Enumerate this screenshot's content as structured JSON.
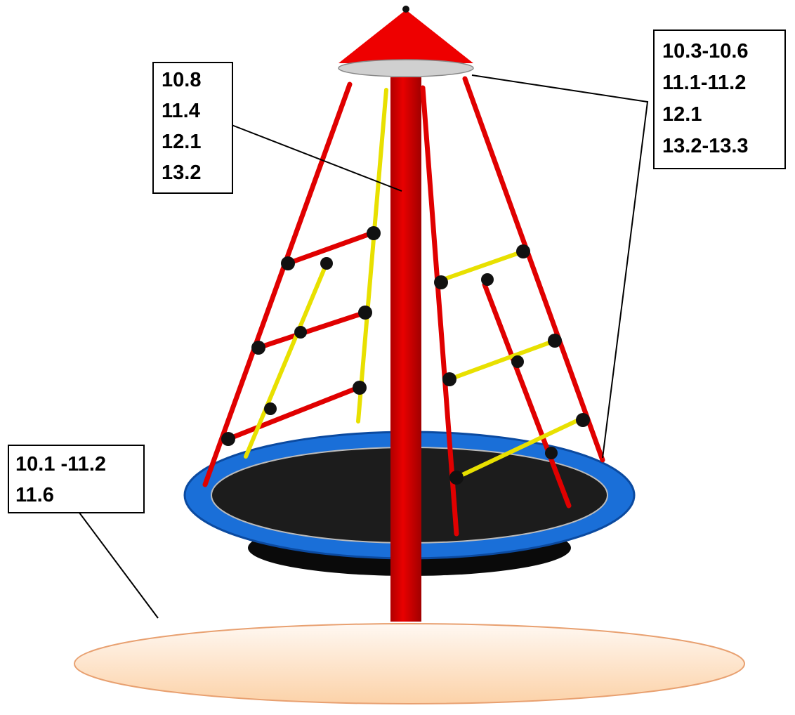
{
  "callouts": [
    {
      "lines": [
        "10.8",
        "11.4",
        "12.1",
        "13.2"
      ]
    },
    {
      "lines": [
        "10.3-10.6",
        "11.1-11.2",
        "12.1",
        "13.2-13.3"
      ]
    },
    {
      "lines": [
        "10.1 -11.2",
        "11.6"
      ]
    }
  ]
}
